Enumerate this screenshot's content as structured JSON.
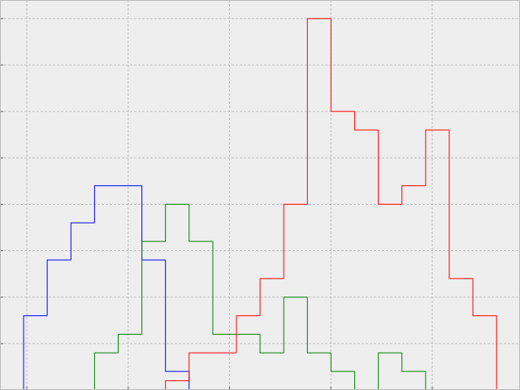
{
  "chart_data": {
    "type": "histogram",
    "xlim": [
      -0.265,
      4.866
    ],
    "ylim": [
      0,
      8.4
    ],
    "xticks": [
      0,
      1,
      2,
      3,
      4
    ],
    "yticks": [
      1,
      2,
      3,
      4,
      5,
      6,
      7,
      8
    ],
    "grid": true,
    "series": [
      {
        "color": "#0000ff",
        "bins": [
          -0.032,
          0.201,
          0.435,
          0.668,
          0.901,
          1.135,
          1.368,
          1.601
        ],
        "values": [
          1.6,
          2.8,
          3.6,
          4.4,
          4.4,
          2.8,
          0.4
        ]
      },
      {
        "color": "#008000",
        "bins": [
          0.668,
          0.901,
          1.135,
          1.368,
          1.601,
          1.835,
          2.068,
          2.301,
          2.535,
          2.768,
          3.001,
          3.235,
          3.468,
          3.701,
          3.935
        ],
        "values": [
          0.8,
          1.2,
          3.2,
          4.0,
          3.2,
          1.2,
          1.2,
          0.8,
          2.0,
          0.8,
          0.4,
          0,
          0.8,
          0.4
        ]
      },
      {
        "color": "#ff0000",
        "bins": [
          1.368,
          1.601,
          1.835,
          2.068,
          2.301,
          2.535,
          2.768,
          3.001,
          3.235,
          3.468,
          3.701,
          3.935,
          4.168,
          4.401,
          4.635
        ],
        "values": [
          0.2,
          0.8,
          0.8,
          1.6,
          2.4,
          4.0,
          8.0,
          6.0,
          5.6,
          4.0,
          4.4,
          5.6,
          2.4,
          1.6
        ]
      }
    ]
  }
}
